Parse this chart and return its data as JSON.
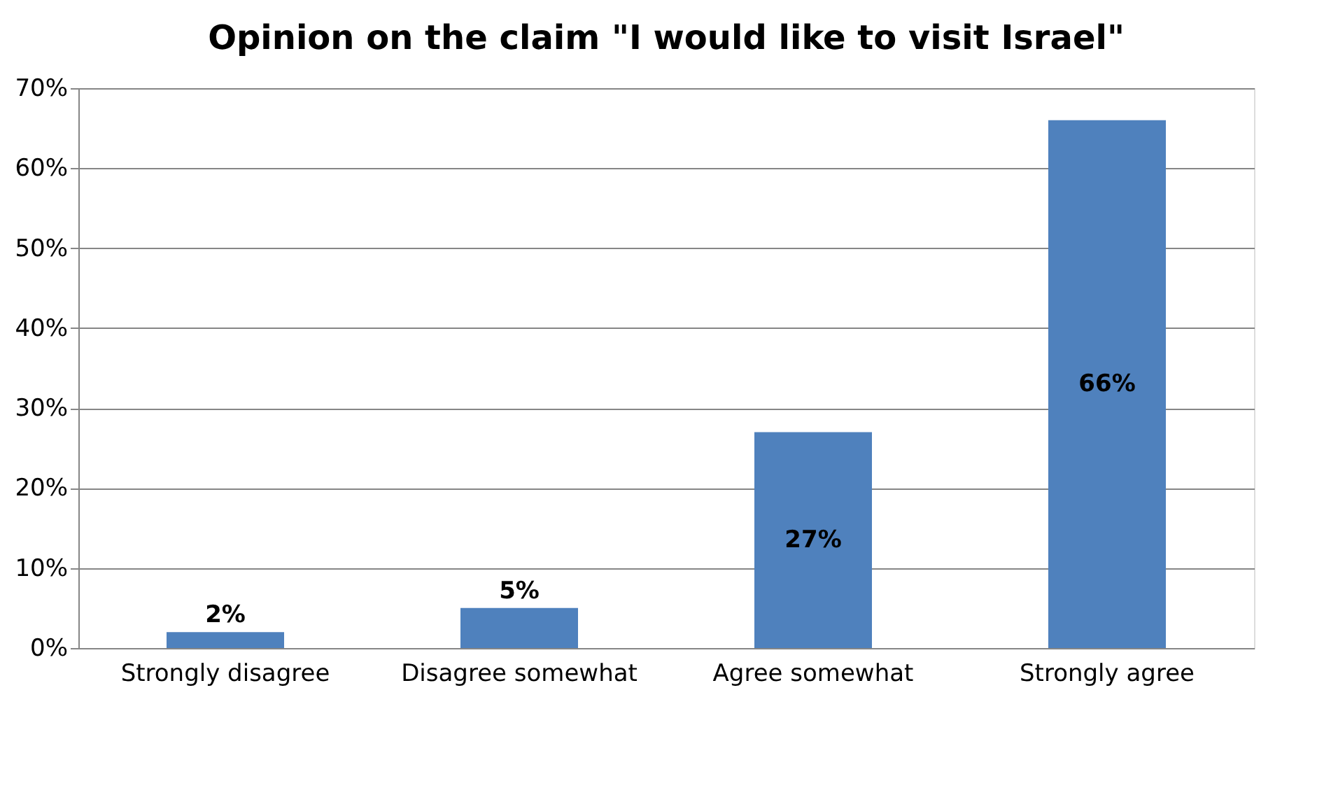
{
  "chart_data": {
    "type": "bar",
    "title": "Opinion on the claim \"I would like to visit Israel\"",
    "categories": [
      "Strongly disagree",
      "Disagree somewhat",
      "Agree somewhat",
      "Strongly agree"
    ],
    "values": [
      2,
      5,
      27,
      66
    ],
    "value_labels": [
      "2%",
      "5%",
      "27%",
      "66%"
    ],
    "color": "#4f81bd",
    "ylim": [
      0,
      70
    ],
    "yticks": [
      {
        "value": 0,
        "label": "0%"
      },
      {
        "value": 10,
        "label": "10%"
      },
      {
        "value": 20,
        "label": "20%"
      },
      {
        "value": 30,
        "label": "30%"
      },
      {
        "value": 40,
        "label": "40%"
      },
      {
        "value": 50,
        "label": "50%"
      },
      {
        "value": 60,
        "label": "60%"
      },
      {
        "value": 70,
        "label": "70%"
      }
    ],
    "grid": "y"
  }
}
